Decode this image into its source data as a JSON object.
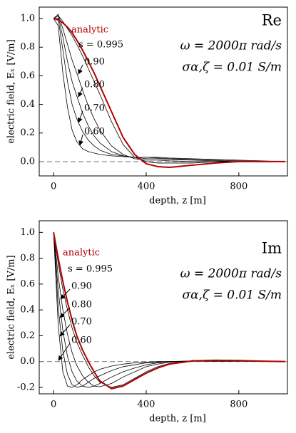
{
  "chart_data": [
    {
      "type": "line",
      "panel_label": "Re",
      "annotation_1": "ω = 2000π rad/s",
      "annotation_2": "σα,ζ = 0.01 S/m",
      "xlabel": "depth, z [m]",
      "ylabel": "electric field, Eₓ [V/m]",
      "xlim": [
        -62,
        1010
      ],
      "ylim": [
        -0.1,
        1.08
      ],
      "xticks": [
        0,
        400,
        800
      ],
      "yticks": [
        {
          "value": 0,
          "label": "0.0"
        },
        0.2,
        0.4,
        0.6,
        0.8,
        {
          "value": 1,
          "label": "1.0"
        }
      ],
      "x": [
        0,
        20,
        40,
        60,
        80,
        100,
        125,
        150,
        175,
        200,
        250,
        300,
        350,
        400,
        450,
        500,
        600,
        700,
        800,
        900,
        1000
      ],
      "series": [
        {
          "name": "analytic",
          "color": "#b00000",
          "values": [
            1.0,
            0.99,
            0.97,
            0.94,
            0.9,
            0.85,
            0.78,
            0.7,
            0.62,
            0.53,
            0.35,
            0.17,
            0.05,
            -0.015,
            -0.035,
            -0.04,
            -0.025,
            -0.01,
            0.0,
            0.0,
            0.0
          ]
        },
        {
          "name": "s = 0.995",
          "color": "#000000",
          "values": [
            1.0,
            1.02,
            0.98,
            0.93,
            0.88,
            0.82,
            0.74,
            0.65,
            0.56,
            0.47,
            0.28,
            0.12,
            0.03,
            0.0,
            -0.01,
            -0.01,
            -0.01,
            0.0,
            0.0,
            0.0,
            0.0
          ]
        },
        {
          "name": "0.90",
          "color": "#000000",
          "values": [
            1.0,
            1.03,
            0.93,
            0.82,
            0.71,
            0.62,
            0.5,
            0.39,
            0.3,
            0.22,
            0.11,
            0.05,
            0.02,
            0.01,
            0.01,
            0.005,
            0.0,
            0.0,
            0.0,
            0.0,
            0.0
          ]
        },
        {
          "name": "0.80",
          "color": "#000000",
          "values": [
            1.0,
            1.02,
            0.87,
            0.7,
            0.56,
            0.46,
            0.34,
            0.25,
            0.18,
            0.13,
            0.07,
            0.04,
            0.03,
            0.02,
            0.02,
            0.015,
            0.01,
            0.005,
            0.0,
            0.0,
            0.0
          ]
        },
        {
          "name": "0.70",
          "color": "#000000",
          "values": [
            1.0,
            1.0,
            0.78,
            0.56,
            0.4,
            0.3,
            0.21,
            0.15,
            0.11,
            0.08,
            0.05,
            0.04,
            0.03,
            0.03,
            0.025,
            0.02,
            0.015,
            0.01,
            0.005,
            0.0,
            0.0
          ]
        },
        {
          "name": "0.60",
          "color": "#000000",
          "values": [
            1.0,
            0.95,
            0.62,
            0.38,
            0.22,
            0.14,
            0.09,
            0.07,
            0.06,
            0.05,
            0.04,
            0.035,
            0.03,
            0.03,
            0.03,
            0.025,
            0.02,
            0.015,
            0.01,
            0.005,
            0.0
          ]
        }
      ]
    },
    {
      "type": "line",
      "panel_label": "Im",
      "annotation_1": "ω = 2000π rad/s",
      "annotation_2": "σα,ζ = 0.01 S/m",
      "xlabel": "depth, z [m]",
      "ylabel": "electric field, Eₓ [V/m]",
      "xlim": [
        -62,
        1010
      ],
      "ylim": [
        -0.25,
        1.09
      ],
      "xticks": [
        0,
        400,
        800
      ],
      "yticks": [
        -0.2,
        {
          "value": 0,
          "label": "0.0"
        },
        0.2,
        0.4,
        0.6,
        0.8,
        {
          "value": 1,
          "label": "1.0"
        }
      ],
      "x": [
        0,
        20,
        40,
        60,
        80,
        100,
        125,
        150,
        175,
        200,
        250,
        300,
        350,
        400,
        450,
        500,
        600,
        700,
        800,
        900,
        1000
      ],
      "series": [
        {
          "name": "analytic",
          "color": "#b00000",
          "values": [
            1.0,
            0.8,
            0.62,
            0.46,
            0.32,
            0.2,
            0.09,
            0.0,
            -0.08,
            -0.15,
            -0.21,
            -0.19,
            -0.14,
            -0.09,
            -0.05,
            -0.02,
            0.005,
            0.01,
            0.008,
            0.003,
            0.0
          ]
        },
        {
          "name": "s = 0.995",
          "color": "#000000",
          "values": [
            1.0,
            0.76,
            0.56,
            0.4,
            0.26,
            0.15,
            0.05,
            -0.04,
            -0.11,
            -0.16,
            -0.2,
            -0.18,
            -0.13,
            -0.08,
            -0.04,
            -0.015,
            0.008,
            0.01,
            0.007,
            0.003,
            0.0
          ]
        },
        {
          "name": "0.90",
          "color": "#000000",
          "values": [
            1.0,
            0.66,
            0.4,
            0.21,
            0.07,
            -0.03,
            -0.11,
            -0.16,
            -0.19,
            -0.195,
            -0.17,
            -0.12,
            -0.08,
            -0.04,
            -0.02,
            -0.005,
            0.005,
            0.008,
            0.005,
            0.002,
            0.0
          ]
        },
        {
          "name": "0.80",
          "color": "#000000",
          "values": [
            1.0,
            0.55,
            0.24,
            0.04,
            -0.08,
            -0.15,
            -0.19,
            -0.2,
            -0.19,
            -0.17,
            -0.12,
            -0.08,
            -0.05,
            -0.025,
            -0.01,
            0.0,
            0.005,
            0.006,
            0.004,
            0.002,
            0.0
          ]
        },
        {
          "name": "0.70",
          "color": "#000000",
          "values": [
            1.0,
            0.42,
            0.08,
            -0.1,
            -0.18,
            -0.2,
            -0.19,
            -0.16,
            -0.13,
            -0.11,
            -0.07,
            -0.04,
            -0.025,
            -0.01,
            -0.005,
            0.0,
            0.003,
            0.004,
            0.003,
            0.001,
            0.0
          ]
        },
        {
          "name": "0.60",
          "color": "#000000",
          "values": [
            1.0,
            0.28,
            -0.08,
            -0.19,
            -0.2,
            -0.18,
            -0.14,
            -0.11,
            -0.08,
            -0.06,
            -0.035,
            -0.02,
            -0.01,
            -0.005,
            0.0,
            0.0,
            0.002,
            0.002,
            0.002,
            0.001,
            0.0
          ]
        }
      ]
    }
  ]
}
